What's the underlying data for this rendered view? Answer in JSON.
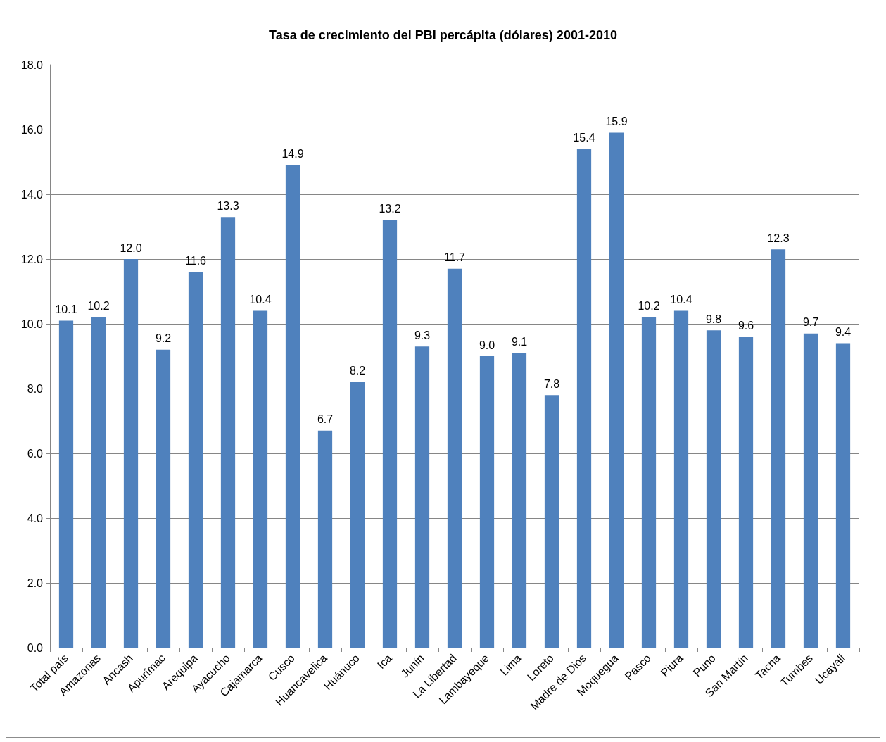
{
  "chart_data": {
    "type": "bar",
    "title": "Tasa de crecimiento del PBI percápita (dólares) 2001-2010",
    "categories": [
      "Total país",
      "Amazonas",
      "Ancash",
      "Apurímac",
      "Arequipa",
      "Ayacucho",
      "Cajamarca",
      "Cusco",
      "Huancavelica",
      "Huánuco",
      "Ica",
      "Junín",
      "La Libertad",
      "Lambayeque",
      "Lima",
      "Loreto",
      "Madre de Dios",
      "Moquegua",
      "Pasco",
      "Piura",
      "Puno",
      "San Martín",
      "Tacna",
      "Tumbes",
      "Ucayali"
    ],
    "values": [
      10.1,
      10.2,
      12.0,
      9.2,
      11.6,
      13.3,
      10.4,
      14.9,
      6.7,
      8.2,
      13.2,
      9.3,
      11.7,
      9.0,
      9.1,
      7.8,
      15.4,
      15.9,
      10.2,
      10.4,
      9.8,
      9.6,
      12.3,
      9.7,
      9.4
    ],
    "value_labels": [
      "10.1",
      "10.2",
      "12.0",
      "9.2",
      "11.6",
      "13.3",
      "10.4",
      "14.9",
      "6.7",
      "8.2",
      "13.2",
      "9.3",
      "11.7",
      "9.0",
      "9.1",
      "7.8",
      "15.4",
      "15.9",
      "10.2",
      "10.4",
      "9.8",
      "9.6",
      "12.3",
      "9.7",
      "9.4"
    ],
    "color": "#4f81bd",
    "ylim": [
      0,
      18
    ],
    "yticks": [
      {
        "value": 0,
        "label": "0.0"
      },
      {
        "value": 2,
        "label": "2.0"
      },
      {
        "value": 4,
        "label": "4.0"
      },
      {
        "value": 6,
        "label": "6.0"
      },
      {
        "value": 8,
        "label": "8.0"
      },
      {
        "value": 10,
        "label": "10.0"
      },
      {
        "value": 12,
        "label": "12.0"
      },
      {
        "value": 14,
        "label": "14.0"
      },
      {
        "value": 16,
        "label": "16.0"
      },
      {
        "value": 18,
        "label": "18.0"
      }
    ],
    "grid": "y"
  }
}
